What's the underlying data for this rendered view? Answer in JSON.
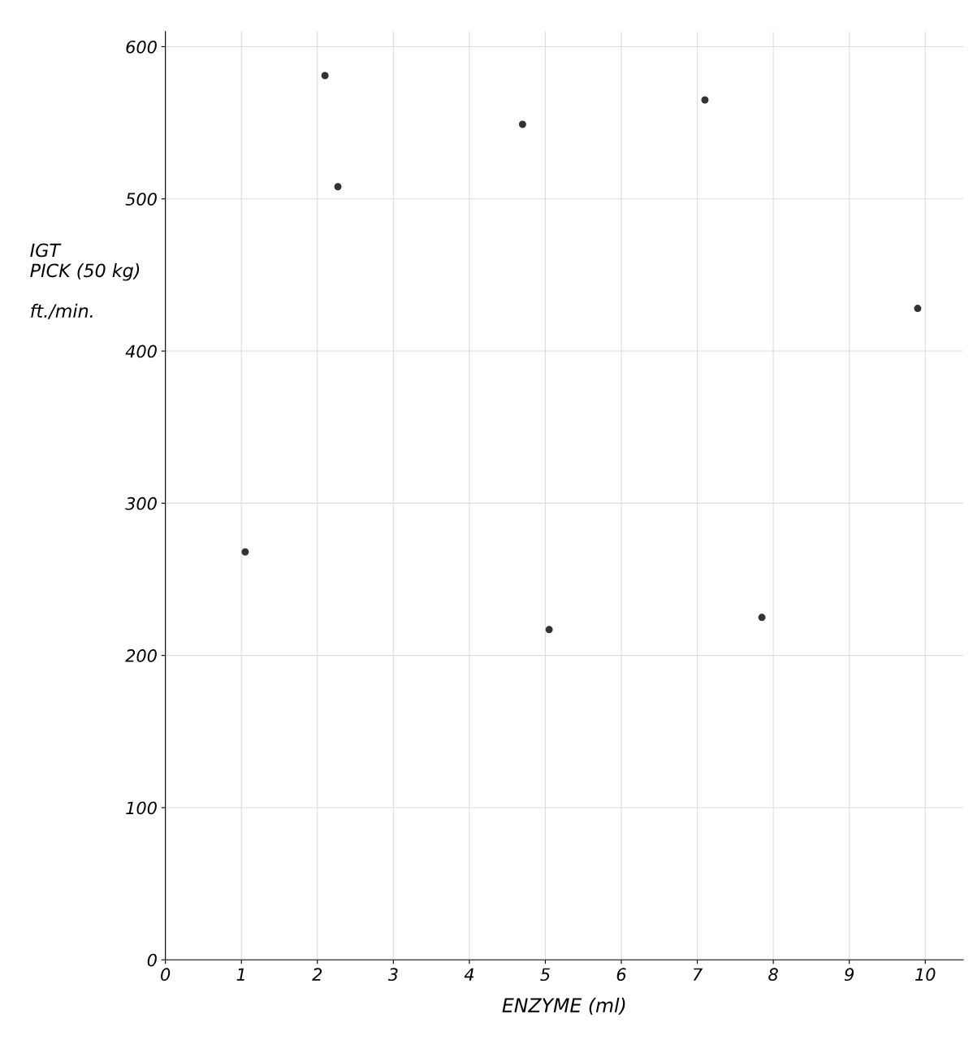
{
  "chart_data": {
    "type": "scatter",
    "xlabel": "ENZYME (ml)",
    "ylabel": "IGT\nPICK (50 kg)\n\nft./min.",
    "x": [
      1.05,
      2.1,
      2.27,
      4.7,
      5.05,
      7.1,
      7.85,
      9.9
    ],
    "series": [
      {
        "color": "#333333",
        "values": [
          268,
          581,
          508,
          549,
          217,
          565,
          225,
          428
        ]
      }
    ],
    "xlim": [
      0,
      10.5
    ],
    "ylim": [
      0,
      610
    ],
    "xticks": [
      0,
      1,
      2,
      3,
      4,
      5,
      6,
      7,
      8,
      9,
      10
    ],
    "yticks": [
      0,
      100,
      200,
      300,
      400,
      500,
      600
    ],
    "grid": true,
    "marker": "circle"
  }
}
